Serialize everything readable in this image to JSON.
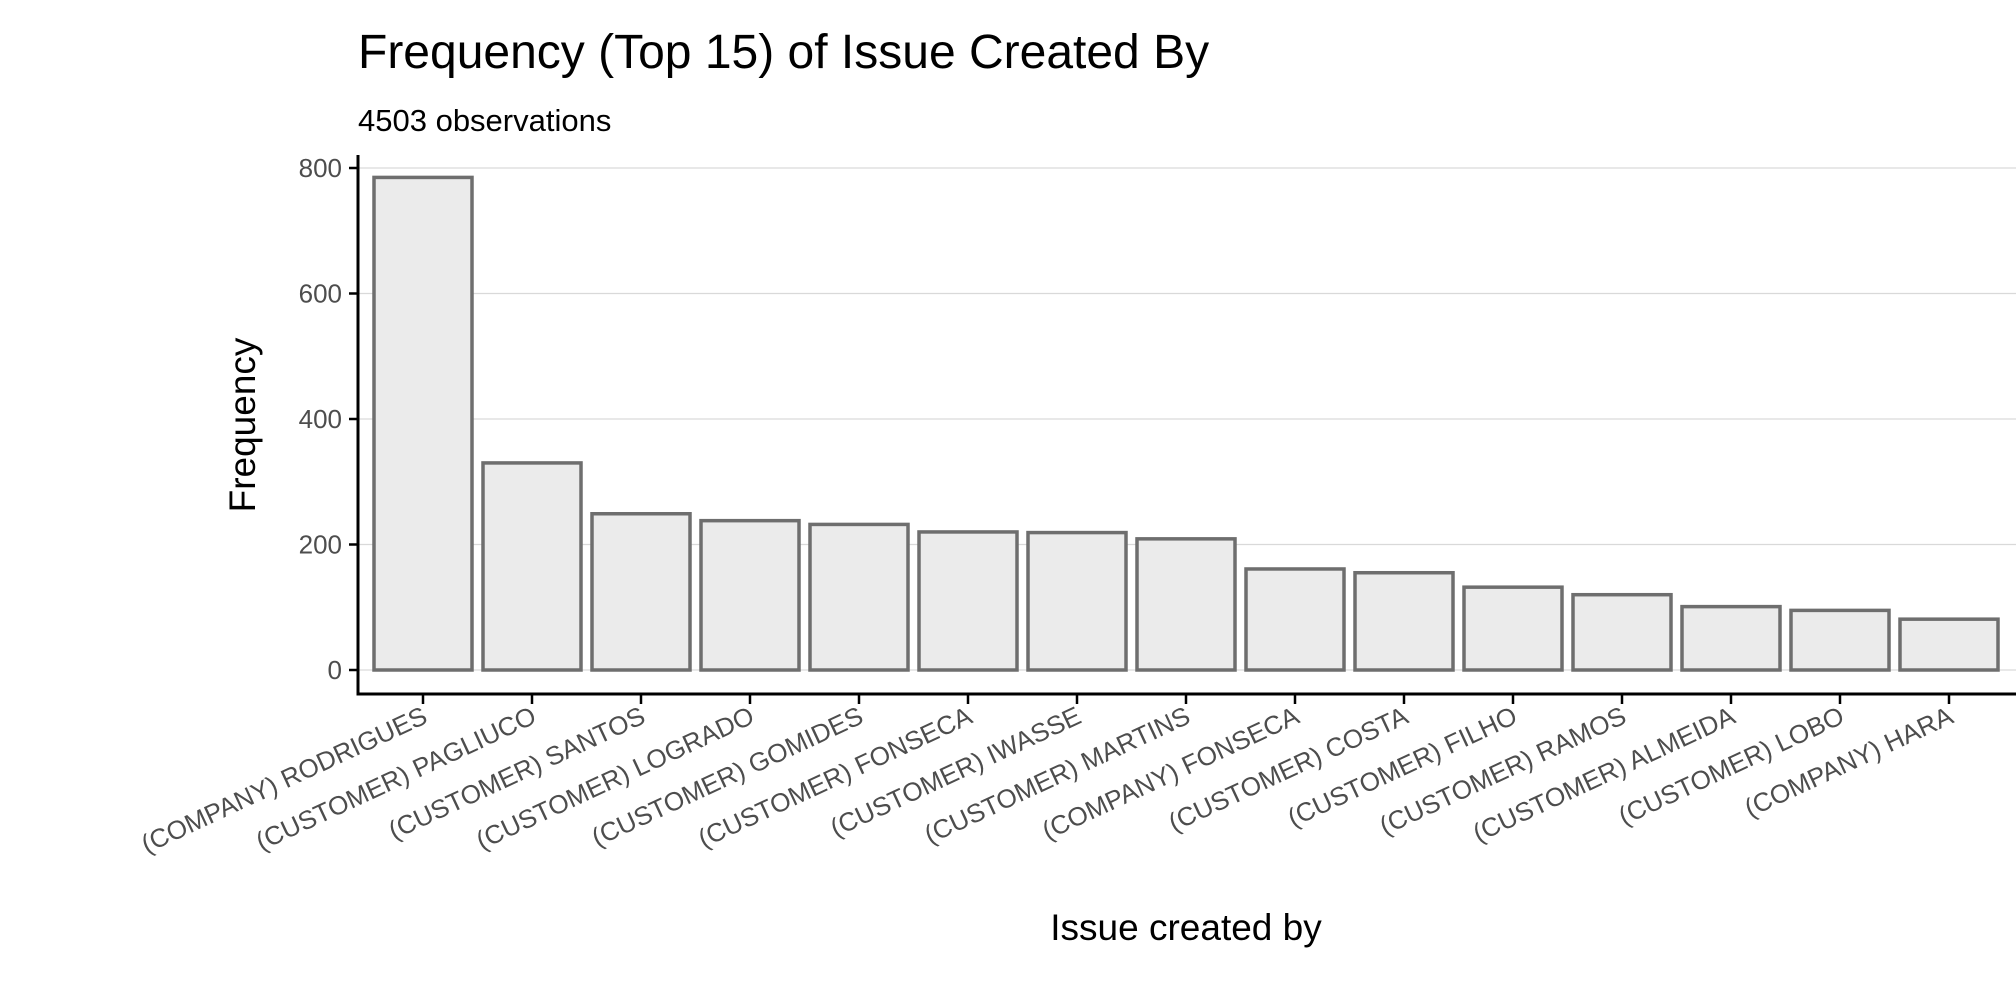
{
  "chart_data": {
    "type": "bar",
    "title": "Frequency (Top 15) of Issue Created By",
    "subtitle": "4503 observations",
    "xlabel": "Issue created by",
    "ylabel": "Frequency",
    "categories": [
      "(COMPANY) RODRIGUES",
      "(CUSTOMER) PAGLIUCO",
      "(CUSTOMER) SANTOS",
      "(CUSTOMER) LOGRADO",
      "(CUSTOMER) GOMIDES",
      "(CUSTOMER) FONSECA",
      "(CUSTOMER) IWASSE",
      "(CUSTOMER) MARTINS",
      "(COMPANY) FONSECA",
      "(CUSTOMER) COSTA",
      "(CUSTOMER) FILHO",
      "(CUSTOMER) RAMOS",
      "(CUSTOMER) ALMEIDA",
      "(CUSTOMER) LOBO",
      "(COMPANY) HARA"
    ],
    "values": [
      785,
      330,
      249,
      238,
      232,
      220,
      219,
      209,
      161,
      155,
      132,
      120,
      101,
      95,
      81
    ],
    "ylim": [
      -37,
      800
    ],
    "yticks": [
      0,
      200,
      400,
      600,
      800
    ],
    "grid": "horizontal major",
    "legend": "none",
    "colors": {
      "bar_fill": "#ebebeb",
      "bar_stroke": "#6e6e6e",
      "grid": "#d9d9d9",
      "axis": "#000000",
      "tick_text": "#4d4d4d",
      "title_text": "#000000"
    }
  }
}
